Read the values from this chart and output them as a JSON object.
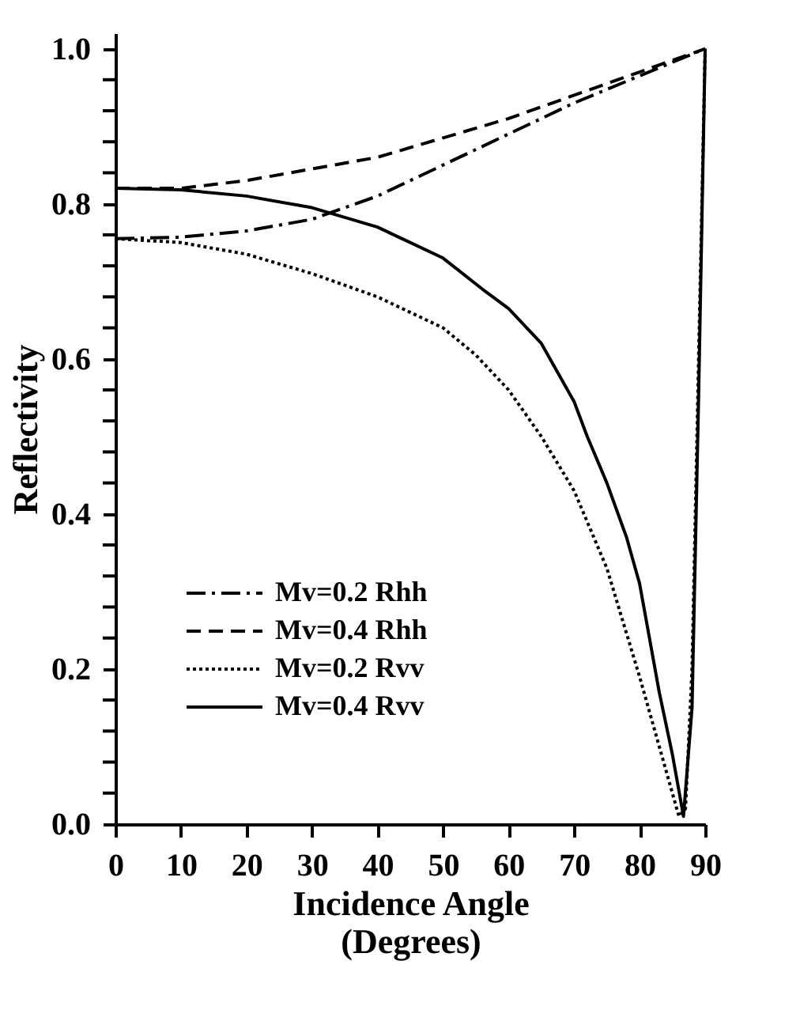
{
  "chart_data": {
    "type": "line",
    "xlabel": "Incidence Angle\n(Degrees)",
    "ylabel": "Reflectivity",
    "xlim": [
      0,
      90
    ],
    "xticks": [
      0,
      10,
      20,
      30,
      40,
      50,
      60,
      70,
      80,
      90
    ],
    "ylim": [
      0,
      1.02
    ],
    "yticks": [
      {
        "value": 0,
        "label": "0.0"
      },
      {
        "value": 0.04,
        "label": null
      },
      {
        "value": 0.08,
        "label": null
      },
      {
        "value": 0.12,
        "label": null
      },
      {
        "value": 0.16,
        "label": null
      },
      {
        "value": 0.2,
        "label": "0.2"
      },
      {
        "value": 0.24,
        "label": null
      },
      {
        "value": 0.28,
        "label": null
      },
      {
        "value": 0.32,
        "label": null
      },
      {
        "value": 0.36,
        "label": null
      },
      {
        "value": 0.4,
        "label": "0.4"
      },
      {
        "value": 0.44,
        "label": null
      },
      {
        "value": 0.48,
        "label": null
      },
      {
        "value": 0.52,
        "label": null
      },
      {
        "value": 0.56,
        "label": null
      },
      {
        "value": 0.6,
        "label": "0.6"
      },
      {
        "value": 0.64,
        "label": null
      },
      {
        "value": 0.68,
        "label": null
      },
      {
        "value": 0.72,
        "label": null
      },
      {
        "value": 0.76,
        "label": null
      },
      {
        "value": 0.8,
        "label": "0.8"
      },
      {
        "value": 0.84,
        "label": null
      },
      {
        "value": 0.88,
        "label": null
      },
      {
        "value": 0.92,
        "label": null
      },
      {
        "value": 0.96,
        "label": null
      },
      {
        "value": 1.0,
        "label": "1.0"
      }
    ],
    "grid": false,
    "legend": "bottom left",
    "marker": "none",
    "series": [
      {
        "name": "Mv=0.2 Rhh",
        "color": "#000000",
        "line_style": "dashdot",
        "x": [
          0,
          10,
          20,
          30,
          40,
          50,
          60,
          70,
          80,
          90
        ],
        "values": [
          0.755,
          0.757,
          0.765,
          0.78,
          0.81,
          0.85,
          0.89,
          0.93,
          0.965,
          1.0
        ]
      },
      {
        "name": "Mv=0.4 Rhh",
        "color": "#000000",
        "line_style": "dashed",
        "x": [
          0,
          10,
          20,
          30,
          40,
          50,
          60,
          70,
          80,
          90
        ],
        "values": [
          0.82,
          0.82,
          0.83,
          0.845,
          0.86,
          0.885,
          0.91,
          0.94,
          0.97,
          1.0
        ]
      },
      {
        "name": "Mv=0.2 Rvv",
        "color": "#000000",
        "line_style": "dotted",
        "x": [
          0,
          10,
          20,
          30,
          40,
          50,
          55,
          60,
          65,
          70,
          75,
          80,
          84,
          86,
          87,
          88,
          89,
          90
        ],
        "values": [
          0.755,
          0.75,
          0.735,
          0.71,
          0.68,
          0.64,
          0.605,
          0.56,
          0.5,
          0.43,
          0.33,
          0.19,
          0.07,
          0.01,
          0.02,
          0.2,
          0.6,
          1.0
        ]
      },
      {
        "name": "Mv=0.4 Rvv",
        "color": "#000000",
        "line_style": "solid",
        "x": [
          0,
          10,
          20,
          30,
          40,
          50,
          56,
          60,
          65,
          70,
          72,
          75,
          78,
          80,
          83,
          85,
          86.7,
          88,
          89,
          90
        ],
        "values": [
          0.82,
          0.818,
          0.81,
          0.795,
          0.77,
          0.73,
          0.69,
          0.665,
          0.62,
          0.545,
          0.5,
          0.44,
          0.37,
          0.31,
          0.17,
          0.09,
          0.01,
          0.15,
          0.55,
          1.0
        ]
      }
    ]
  }
}
